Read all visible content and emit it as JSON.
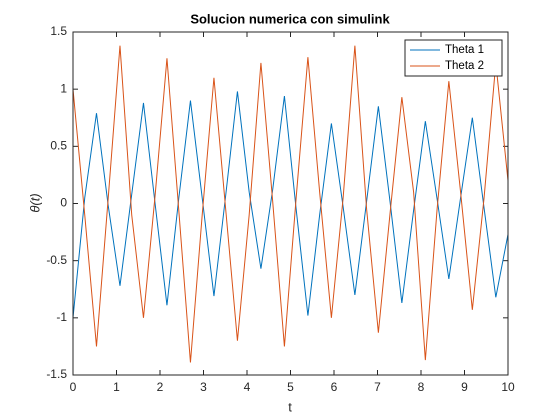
{
  "chart_data": {
    "type": "line",
    "title": "Solucion numerica con simulink",
    "xlabel": "t",
    "ylabel": "θ(t)",
    "x": [
      0,
      0.27,
      0.54,
      0.81,
      1.08,
      1.35,
      1.62,
      1.89,
      2.16,
      2.43,
      2.7,
      2.97,
      3.24,
      3.51,
      3.78,
      4.05,
      4.32,
      4.59,
      4.86,
      5.13,
      5.4,
      5.67,
      5.94,
      6.21,
      6.48,
      6.75,
      7.02,
      7.29,
      7.56,
      7.83,
      8.1,
      8.37,
      8.64,
      8.91,
      9.18,
      9.45,
      9.72,
      10
    ],
    "series": [
      {
        "name": "Theta 1",
        "color": "#0072BD",
        "values": [
          -1,
          0.05,
          0.79,
          -0.02,
          -0.72,
          0.08,
          0.88,
          -0.01,
          -0.89,
          0.04,
          0.9,
          0.05,
          -0.81,
          0.07,
          0.98,
          0.1,
          -0.57,
          0.12,
          0.94,
          -0.05,
          -0.98,
          -0.1,
          0.7,
          -0.03,
          -0.8,
          0.02,
          0.85,
          0.01,
          -0.87,
          -0.06,
          0.72,
          0.04,
          -0.66,
          0.05,
          0.75,
          -0.04,
          -0.82,
          -0.27
        ]
      },
      {
        "name": "Theta 2",
        "color": "#D95319",
        "values": [
          1,
          -0.1,
          -1.25,
          0.05,
          1.38,
          -0.1,
          -1,
          0.08,
          1.27,
          -0.05,
          -1.39,
          -0.1,
          1.1,
          -0.05,
          -1.2,
          -0.1,
          1.23,
          0.02,
          -1.25,
          0.05,
          1.28,
          0.1,
          -1,
          0.05,
          1.38,
          -0.05,
          -1.13,
          -0.08,
          0.93,
          0.1,
          -1.37,
          -0.05,
          1.07,
          0.1,
          -0.93,
          0.05,
          1.23,
          0.2
        ]
      }
    ],
    "xlim": [
      0,
      10
    ],
    "ylim": [
      -1.5,
      1.5
    ],
    "xticks": [
      0,
      1,
      2,
      3,
      4,
      5,
      6,
      7,
      8,
      9,
      10
    ],
    "yticks": [
      -1.5,
      -1,
      -0.5,
      0,
      0.5,
      1,
      1.5
    ],
    "legend": "northeast",
    "grid": false
  }
}
